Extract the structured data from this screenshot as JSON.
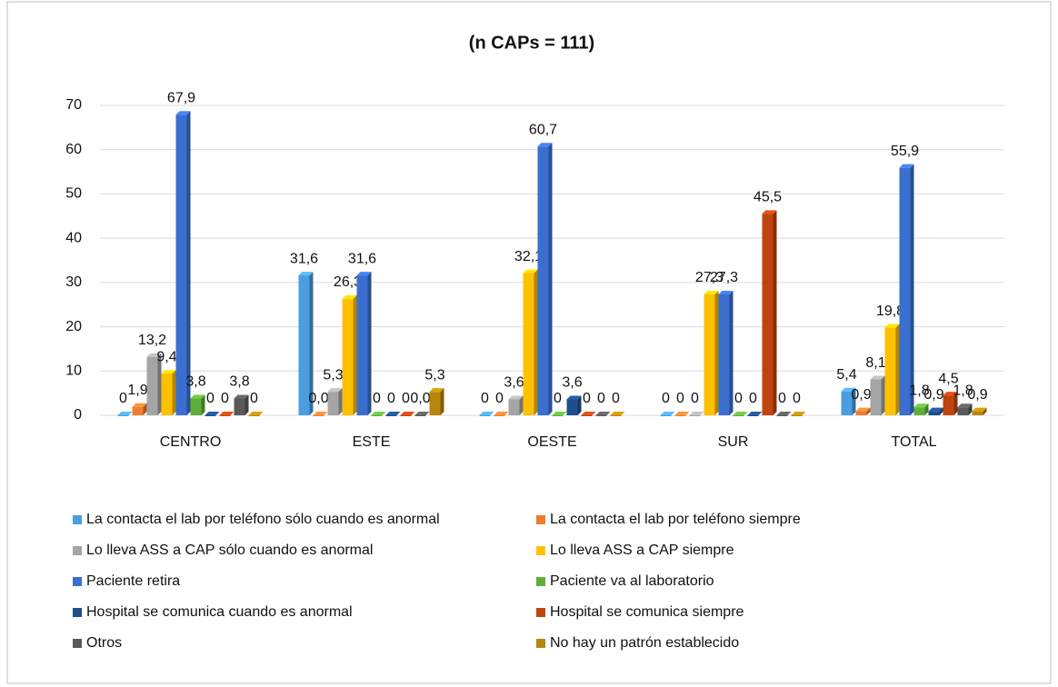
{
  "chart_data": {
    "type": "bar",
    "subtitle": "(n CAPs = 111)",
    "categories": [
      "CENTRO",
      "ESTE",
      "OESTE",
      "SUR",
      "TOTAL"
    ],
    "ylim": [
      0,
      70
    ],
    "yticks": [
      0,
      10,
      20,
      30,
      40,
      50,
      60,
      70
    ],
    "grid": true,
    "legend": "bottom",
    "series": [
      {
        "name": "La contacta el lab por teléfono sólo cuando es anormal",
        "color": "#4a9ee0",
        "values": [
          0,
          31.6,
          0,
          0,
          5.4
        ],
        "value_labels": [
          "0",
          "31,6",
          "0",
          "0",
          "5,4"
        ]
      },
      {
        "name": "La contacta el lab por teléfono siempre",
        "color": "#ed7d31",
        "values": [
          1.9,
          0,
          0,
          0,
          0.9
        ],
        "value_labels": [
          "1,9",
          "0,0",
          "0",
          "0",
          "0,9"
        ]
      },
      {
        "name": "Lo lleva ASS a CAP sólo cuando es anormal",
        "color": "#a5a5a5",
        "values": [
          13.2,
          5.3,
          3.6,
          0,
          8.1
        ],
        "value_labels": [
          "13,2",
          "5,3",
          "3,6",
          "0",
          "8,1"
        ]
      },
      {
        "name": "Lo lleva ASS a CAP siempre",
        "color": "#ffc000",
        "values": [
          9.4,
          26.3,
          32.1,
          27.3,
          19.8
        ],
        "value_labels": [
          "9,4",
          "26,3",
          "32,1",
          "27,3",
          "19,8"
        ]
      },
      {
        "name": "Paciente retira",
        "color": "#3a6fd0",
        "values": [
          67.9,
          31.6,
          60.7,
          27.3,
          55.9
        ],
        "value_labels": [
          "67,9",
          "31,6",
          "60,7",
          "27,3",
          "55,9"
        ]
      },
      {
        "name": "Paciente va al laboratorio",
        "color": "#5fae3a",
        "values": [
          3.8,
          0,
          0,
          0,
          1.8
        ],
        "value_labels": [
          "3,8",
          "0",
          "0",
          "0",
          "1,8"
        ]
      },
      {
        "name": "Hospital se comunica cuando es anormal",
        "color": "#1f4e8c",
        "values": [
          0,
          0,
          3.6,
          0,
          0.9
        ],
        "value_labels": [
          "0",
          "0",
          "3,6",
          "0",
          "0,9"
        ]
      },
      {
        "name": "Hospital se comunica siempre",
        "color": "#c0440e",
        "values": [
          0,
          0,
          0,
          45.5,
          4.5
        ],
        "value_labels": [
          "0",
          "0",
          "0",
          "45,5",
          "4,5"
        ]
      },
      {
        "name": "Otros",
        "color": "#595959",
        "values": [
          3.8,
          0,
          0,
          0,
          1.8
        ],
        "value_labels": [
          "3,8",
          "0,0",
          "0",
          "0",
          "1,8"
        ]
      },
      {
        "name": "No hay un patrón establecido",
        "color": "#b8860b",
        "values": [
          0,
          5.3,
          0,
          0,
          0.9
        ],
        "value_labels": [
          "0",
          "5,3",
          "0",
          "0",
          "0,9"
        ]
      }
    ]
  }
}
